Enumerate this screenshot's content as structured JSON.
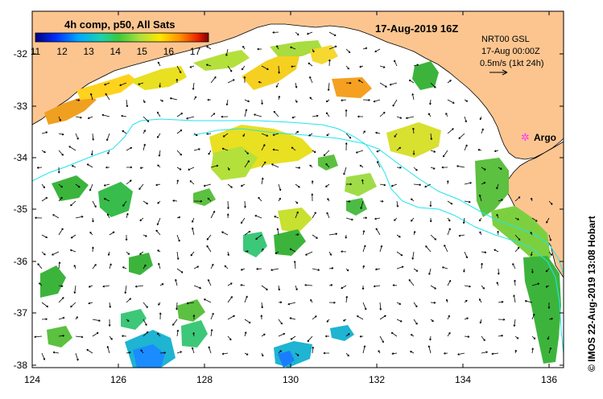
{
  "colorbar": {
    "title": "4h comp, p50, All Sats",
    "tick_labels": [
      "11",
      "12",
      "13",
      "14",
      "15",
      "16",
      "17"
    ],
    "min": 11,
    "max": 17.5
  },
  "map_title": "17-Aug-2019 16Z",
  "current_info": {
    "line1": "NRT00 GSL",
    "line2": "17-Aug 00:00Z",
    "scale_label": "0.5m/s (1kt 24h)"
  },
  "argo": {
    "label": "Argo",
    "color": "#ff33ff"
  },
  "credit": "© IMOS 22-Aug-2019 13:08 Hobart",
  "axes": {
    "x_labels": [
      "124",
      "126",
      "128",
      "130",
      "132",
      "134",
      "136"
    ],
    "y_labels": [
      "-32",
      "-33",
      "-34",
      "-35",
      "-36",
      "-37",
      "-38"
    ]
  },
  "colors": {
    "land": "#fcc590",
    "contour": "#1fe4f0",
    "ocean": "#ffffff"
  }
}
